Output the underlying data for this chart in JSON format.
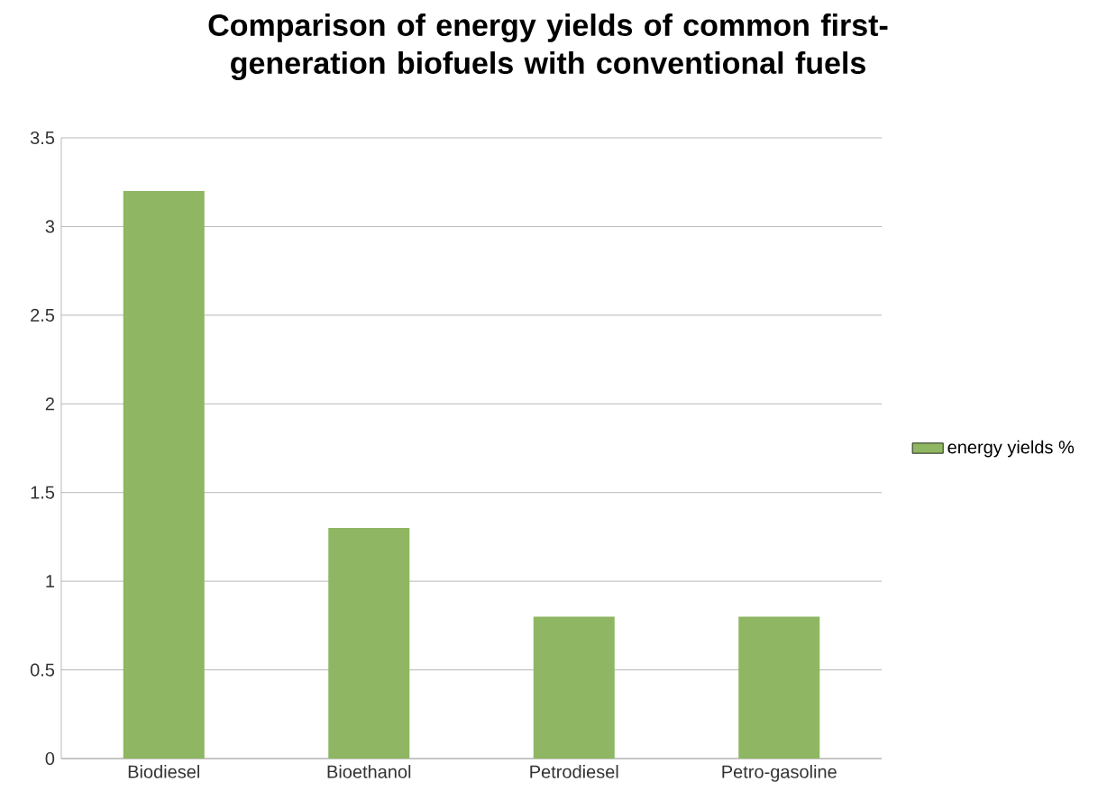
{
  "chart_data": {
    "type": "bar",
    "title": "Comparison of energy yields of common first-generation biofuels with conventional fuels",
    "categories": [
      "Biodiesel",
      "Bioethanol",
      "Petrodiesel",
      "Petro-gasoline"
    ],
    "series": [
      {
        "name": "energy yields %",
        "color": "#8fb662",
        "values": [
          3.2,
          1.3,
          0.8,
          0.8
        ]
      }
    ],
    "ylim": [
      0,
      3.5
    ],
    "yticks": [
      0,
      0.5,
      1,
      1.5,
      2,
      2.5,
      3,
      3.5
    ],
    "grid": "y",
    "legend": "right"
  }
}
